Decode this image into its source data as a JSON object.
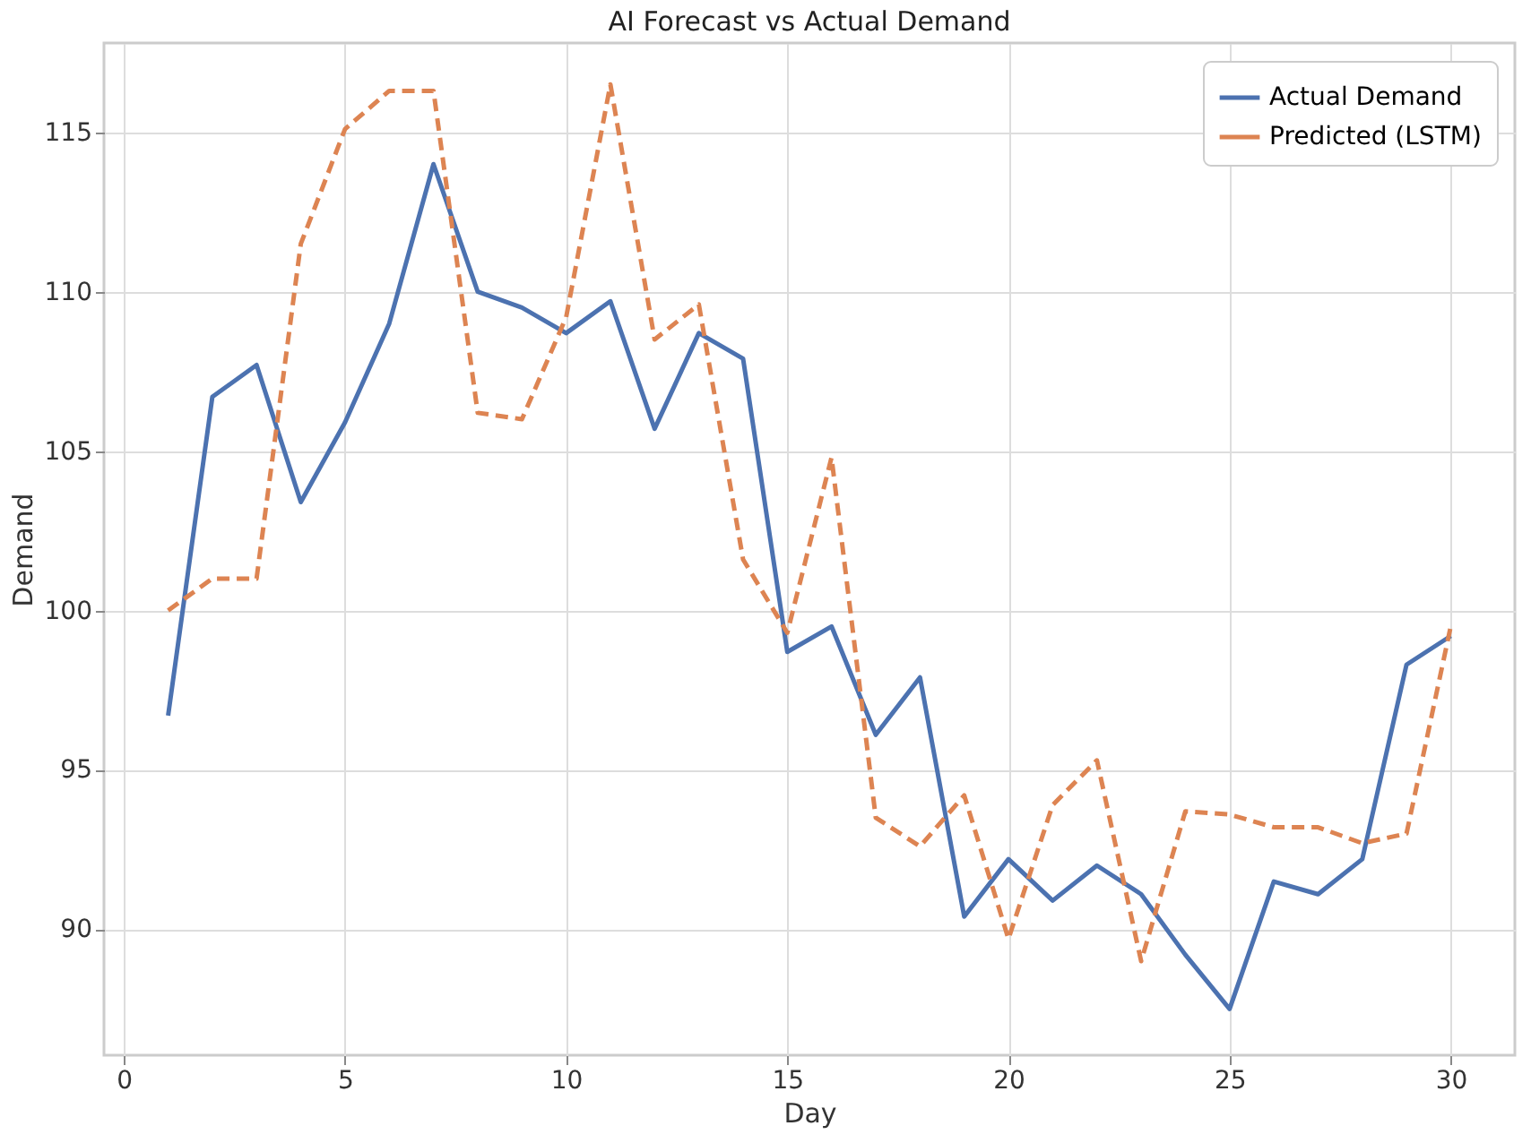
{
  "chart_data": {
    "type": "line",
    "title": "AI Forecast vs Actual Demand",
    "xlabel": "Day",
    "ylabel": "Demand",
    "x": [
      1,
      2,
      3,
      4,
      5,
      6,
      7,
      8,
      9,
      10,
      11,
      12,
      13,
      14,
      15,
      16,
      17,
      18,
      19,
      20,
      21,
      22,
      23,
      24,
      25,
      26,
      27,
      28,
      29,
      30
    ],
    "series": [
      {
        "name": "Actual Demand",
        "color": "#4c72b0",
        "line_style": "solid",
        "values": [
          96.7,
          106.7,
          107.7,
          103.4,
          105.9,
          109.0,
          114.0,
          110.0,
          109.5,
          108.7,
          109.7,
          105.7,
          108.7,
          107.9,
          98.7,
          99.5,
          96.1,
          97.9,
          90.4,
          92.2,
          90.9,
          92.0,
          91.1,
          89.2,
          87.5,
          91.5,
          91.1,
          92.2,
          98.3,
          99.2
        ]
      },
      {
        "name": "Predicted (LSTM)",
        "color": "#dd8452",
        "line_style": "dashed",
        "values": [
          100.0,
          101.0,
          101.0,
          111.5,
          115.1,
          116.3,
          116.3,
          106.2,
          106.0,
          109.2,
          116.5,
          108.5,
          109.6,
          101.6,
          99.3,
          104.8,
          93.5,
          92.6,
          94.2,
          89.7,
          93.9,
          95.3,
          89.0,
          93.7,
          93.6,
          93.2,
          93.2,
          92.7,
          93.0,
          99.5
        ]
      }
    ],
    "xlim": [
      -0.45,
      31.45
    ],
    "xticks": [
      0,
      5,
      10,
      15,
      20,
      25,
      30
    ],
    "ylim": [
      86.05,
      117.8
    ],
    "yticks": [
      90,
      95,
      100,
      105,
      110,
      115
    ],
    "grid": true,
    "legend": "top right",
    "marker": "none"
  }
}
